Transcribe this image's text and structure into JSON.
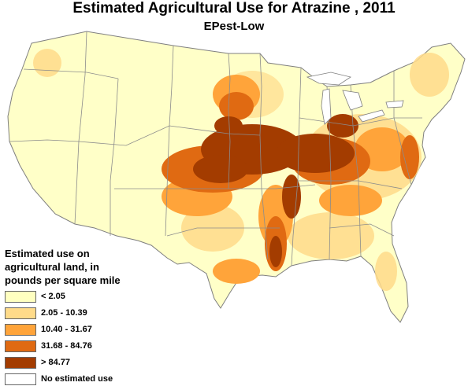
{
  "header": {
    "title": "Estimated Agricultural Use for Atrazine , 2011",
    "subtitle": "EPest-Low"
  },
  "legend": {
    "title_lines": [
      "Estimated use on",
      "agricultural land, in",
      "pounds per square mile"
    ],
    "items": [
      {
        "label": "< 2.05",
        "color": "#FFFFC0"
      },
      {
        "label": "2.05 - 10.39",
        "color": "#FFDB8A"
      },
      {
        "label": "10.40 - 31.67",
        "color": "#FFA43A"
      },
      {
        "label": "31.68 - 84.76",
        "color": "#E06A12"
      },
      {
        "label": "> 84.77",
        "color": "#A33C00"
      },
      {
        "label": "No estimated use",
        "color": "#FFFFFF"
      }
    ]
  },
  "map": {
    "region": "conterminous United States",
    "boundary_color": "#8C8C8C"
  }
}
